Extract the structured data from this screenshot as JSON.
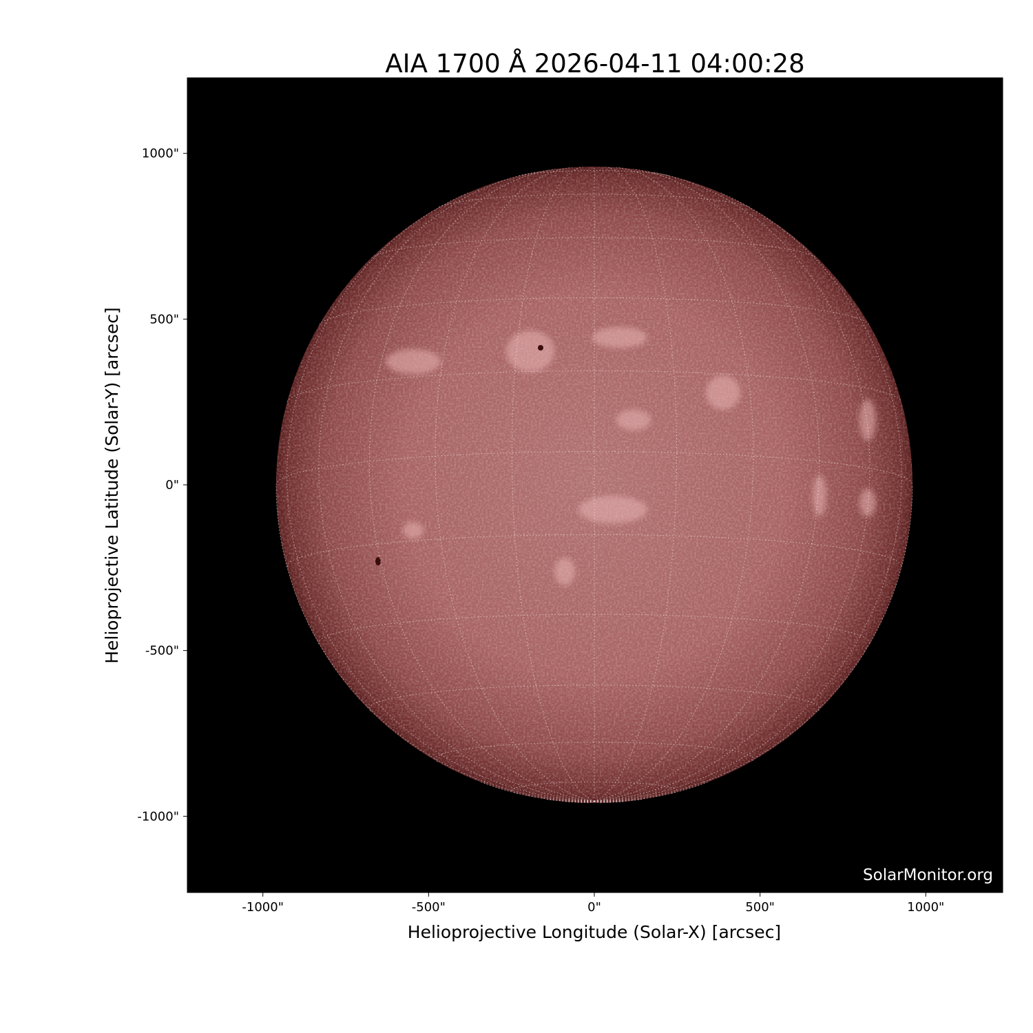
{
  "chart_data": {
    "type": "heatmap",
    "title": "AIA 1700 Å 2026-04-11 04:00:28",
    "xlabel": "Helioprojective Longitude (Solar-X) [arcsec]",
    "ylabel": "Helioprojective Latitude (Solar-Y) [arcsec]",
    "xlim": [
      -1230,
      1230
    ],
    "ylim": [
      -1230,
      1230
    ],
    "xticks": [
      -1000,
      -500,
      0,
      500,
      1000
    ],
    "yticks": [
      1000,
      500,
      0,
      -500,
      -1000
    ],
    "xtick_labels": [
      "-1000\"",
      "-500\"",
      "0\"",
      "500\"",
      "1000\""
    ],
    "ytick_labels": [
      "1000\"",
      "500\"",
      "0\"",
      "-500\"",
      "-1000\""
    ],
    "solar_radius_arcsec": 960,
    "grid": true,
    "grid_spacing_deg": 15,
    "colormap": "sdoaia1700",
    "colors": {
      "disk_center": "#b07070",
      "disk_limb": "#5e2222",
      "background": "#000000",
      "grid": "#ffffff"
    }
  },
  "watermark": "SolarMonitor.org"
}
